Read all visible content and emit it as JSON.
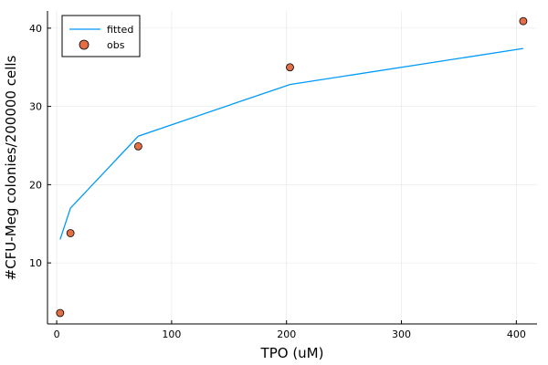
{
  "chart_data": {
    "type": "line+scatter",
    "xlabel": "TPO (uM)",
    "ylabel": "#CFU-Meg colonies/200000 cells",
    "xlim": [
      -8,
      418
    ],
    "ylim": [
      2.2,
      42.2
    ],
    "xticks": [
      0,
      100,
      200,
      300,
      400
    ],
    "yticks": [
      10,
      20,
      30,
      40
    ],
    "grid": true,
    "legend_position": "top-left",
    "series": [
      {
        "name": "fitted",
        "kind": "line",
        "color": "#009AF9",
        "x": [
          3,
          12,
          71,
          203,
          406
        ],
        "y": [
          13.0,
          17.0,
          26.2,
          32.8,
          37.4
        ]
      },
      {
        "name": "obs",
        "kind": "scatter",
        "color": "#E26F46",
        "x": [
          3,
          12,
          71,
          203,
          406
        ],
        "y": [
          3.6,
          13.8,
          24.9,
          35.0,
          40.9
        ]
      }
    ]
  }
}
